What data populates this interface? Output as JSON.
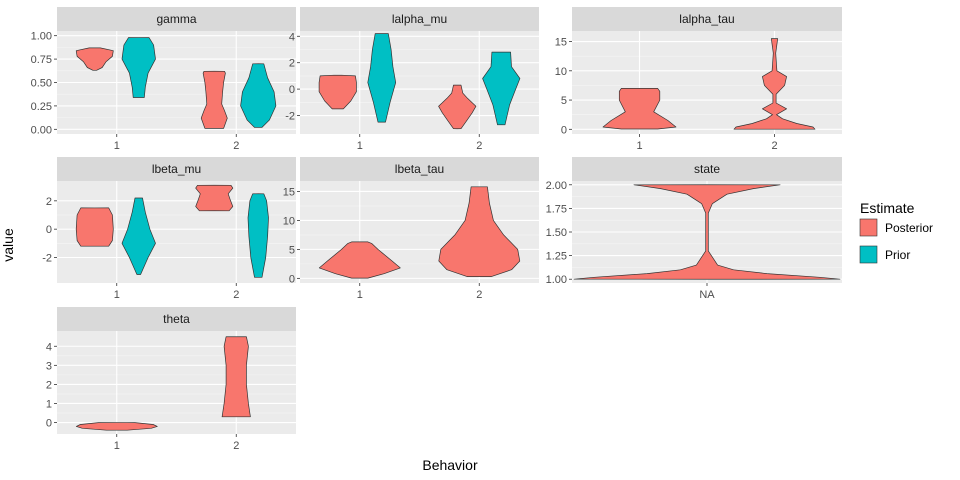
{
  "chart_data": {
    "type": "violin",
    "xlabel": "Behavior",
    "ylabel": "value",
    "legend": {
      "title": "Estimate",
      "placement": "right",
      "entries": [
        {
          "name": "Posterior",
          "color": "#F8766D"
        },
        {
          "name": "Prior",
          "color": "#00BFC4"
        }
      ]
    },
    "panels": [
      {
        "title": "gamma",
        "categories": [
          "1",
          "2"
        ],
        "ylim": [
          -0.05,
          1.05
        ],
        "yticks": [
          0.0,
          0.25,
          0.5,
          0.75,
          1.0
        ],
        "ytick_labels": [
          "0.00",
          "0.25",
          "0.50",
          "0.75",
          "1.00"
        ],
        "violins": [
          {
            "category": "1",
            "series": "Posterior",
            "profile": [
              [
                0.63,
                0.1
              ],
              [
                0.66,
                0.4
              ],
              [
                0.72,
                0.6
              ],
              [
                0.78,
                0.95
              ],
              [
                0.84,
                1.0
              ],
              [
                0.87,
                0.3
              ]
            ]
          },
          {
            "category": "1",
            "series": "Prior",
            "profile": [
              [
                0.34,
                0.3
              ],
              [
                0.45,
                0.35
              ],
              [
                0.6,
                0.5
              ],
              [
                0.75,
                0.9
              ],
              [
                0.9,
                0.8
              ],
              [
                0.98,
                0.55
              ]
            ]
          },
          {
            "category": "2",
            "series": "Posterior",
            "profile": [
              [
                0.01,
                0.5
              ],
              [
                0.12,
                0.7
              ],
              [
                0.2,
                0.55
              ],
              [
                0.27,
                0.4
              ],
              [
                0.4,
                0.45
              ],
              [
                0.5,
                0.5
              ],
              [
                0.6,
                0.6
              ],
              [
                0.62,
                0.55
              ]
            ]
          },
          {
            "category": "2",
            "series": "Prior",
            "profile": [
              [
                0.02,
                0.2
              ],
              [
                0.1,
                0.6
              ],
              [
                0.25,
                0.95
              ],
              [
                0.4,
                0.85
              ],
              [
                0.55,
                0.5
              ],
              [
                0.7,
                0.3
              ]
            ]
          }
        ]
      },
      {
        "title": "lalpha_mu",
        "categories": [
          "1",
          "2"
        ],
        "ylim": [
          -3.4,
          4.4
        ],
        "yticks": [
          -2,
          0,
          2,
          4
        ],
        "ytick_labels": [
          "-2",
          "0",
          "2",
          "4"
        ],
        "violins": [
          {
            "category": "1",
            "series": "Posterior",
            "profile": [
              [
                -1.5,
                0.3
              ],
              [
                -0.9,
                0.7
              ],
              [
                -0.2,
                1.0
              ],
              [
                0.5,
                1.0
              ],
              [
                1.0,
                0.95
              ],
              [
                1.05,
                0.2
              ]
            ]
          },
          {
            "category": "1",
            "series": "Prior",
            "profile": [
              [
                -2.5,
                0.2
              ],
              [
                -1.0,
                0.45
              ],
              [
                0.5,
                0.75
              ],
              [
                1.7,
                0.6
              ],
              [
                3.0,
                0.5
              ],
              [
                4.2,
                0.35
              ]
            ]
          },
          {
            "category": "2",
            "series": "Posterior",
            "profile": [
              [
                -3.0,
                0.2
              ],
              [
                -2.4,
                0.5
              ],
              [
                -1.8,
                0.8
              ],
              [
                -1.3,
                1.0
              ],
              [
                -0.7,
                0.55
              ],
              [
                -0.3,
                0.3
              ],
              [
                0.3,
                0.2
              ]
            ]
          },
          {
            "category": "2",
            "series": "Prior",
            "profile": [
              [
                -2.7,
                0.2
              ],
              [
                -1.2,
                0.45
              ],
              [
                -0.1,
                0.75
              ],
              [
                0.8,
                1.0
              ],
              [
                1.7,
                0.55
              ],
              [
                2.8,
                0.5
              ]
            ]
          }
        ]
      },
      {
        "title": "lalpha_tau",
        "categories": [
          "1",
          "2"
        ],
        "ylim": [
          -0.8,
          16.8
        ],
        "yticks": [
          0,
          5,
          10,
          15
        ],
        "ytick_labels": [
          "0",
          "5",
          "10",
          "15"
        ],
        "violins": [
          {
            "category": "1",
            "series": "Posterior",
            "profile": [
              [
                0.05,
                0.45
              ],
              [
                0.4,
                0.9
              ],
              [
                1.5,
                0.7
              ],
              [
                3.0,
                0.35
              ],
              [
                5.0,
                0.5
              ],
              [
                6.5,
                0.5
              ],
              [
                7.0,
                0.45
              ]
            ]
          },
          {
            "category": "2",
            "series": "Posterior",
            "profile": [
              [
                0.02,
                1.0
              ],
              [
                0.4,
                0.95
              ],
              [
                1.0,
                0.55
              ],
              [
                1.8,
                0.2
              ],
              [
                2.5,
                0.05
              ],
              [
                3.5,
                0.3
              ],
              [
                4.5,
                0.04
              ],
              [
                6.0,
                0.04
              ],
              [
                7.5,
                0.25
              ],
              [
                9.0,
                0.3
              ],
              [
                10.0,
                0.06
              ],
              [
                13.0,
                0.03
              ],
              [
                15.5,
                0.08
              ]
            ]
          }
        ]
      },
      {
        "title": "lbeta_mu",
        "categories": [
          "1",
          "2"
        ],
        "ylim": [
          -3.8,
          3.4
        ],
        "yticks": [
          -2,
          0,
          2
        ],
        "ytick_labels": [
          "-2",
          "0",
          "2"
        ],
        "violins": [
          {
            "category": "1",
            "series": "Posterior",
            "profile": [
              [
                -1.2,
                0.75
              ],
              [
                -0.8,
                0.95
              ],
              [
                0.0,
                1.0
              ],
              [
                1.0,
                0.95
              ],
              [
                1.5,
                0.75
              ]
            ]
          },
          {
            "category": "1",
            "series": "Prior",
            "profile": [
              [
                -3.2,
                0.1
              ],
              [
                -2.0,
                0.5
              ],
              [
                -1.0,
                0.9
              ],
              [
                0.0,
                0.6
              ],
              [
                1.2,
                0.35
              ],
              [
                2.2,
                0.2
              ]
            ]
          },
          {
            "category": "2",
            "series": "Posterior",
            "profile": [
              [
                1.3,
                0.8
              ],
              [
                1.6,
                1.0
              ],
              [
                2.1,
                0.85
              ],
              [
                2.5,
                0.75
              ],
              [
                2.9,
                1.0
              ],
              [
                3.1,
                0.9
              ]
            ]
          },
          {
            "category": "2",
            "series": "Prior",
            "profile": [
              [
                -3.4,
                0.2
              ],
              [
                -2.0,
                0.4
              ],
              [
                -0.5,
                0.5
              ],
              [
                0.8,
                0.55
              ],
              [
                2.0,
                0.45
              ],
              [
                2.5,
                0.3
              ]
            ]
          }
        ]
      },
      {
        "title": "lbeta_tau",
        "categories": [
          "1",
          "2"
        ],
        "ylim": [
          -0.8,
          16.8
        ],
        "yticks": [
          0,
          5,
          10,
          15
        ],
        "ytick_labels": [
          "0",
          "5",
          "10",
          "15"
        ],
        "violins": [
          {
            "category": "1",
            "series": "Posterior",
            "profile": [
              [
                0.05,
                0.2
              ],
              [
                0.8,
                0.6
              ],
              [
                1.8,
                1.0
              ],
              [
                3.0,
                0.8
              ],
              [
                5.0,
                0.45
              ],
              [
                6.0,
                0.3
              ],
              [
                6.3,
                0.2
              ]
            ]
          },
          {
            "category": "2",
            "series": "Posterior",
            "profile": [
              [
                0.3,
                0.3
              ],
              [
                1.5,
                0.8
              ],
              [
                3.0,
                1.0
              ],
              [
                5.0,
                0.95
              ],
              [
                7.5,
                0.6
              ],
              [
                10.0,
                0.35
              ],
              [
                13.0,
                0.25
              ],
              [
                15.8,
                0.2
              ]
            ]
          }
        ]
      },
      {
        "title": "state",
        "categories": [
          "NA"
        ],
        "ylim": [
          0.96,
          2.04
        ],
        "yticks": [
          1.0,
          1.25,
          1.5,
          1.75,
          2.0
        ],
        "ytick_labels": [
          "1.00",
          "1.25",
          "1.50",
          "1.75",
          "2.00"
        ],
        "violins": [
          {
            "category": "NA",
            "series": "Posterior",
            "profile": [
              [
                1.0,
                1.0
              ],
              [
                1.02,
                0.85
              ],
              [
                1.06,
                0.45
              ],
              [
                1.1,
                0.2
              ],
              [
                1.15,
                0.08
              ],
              [
                1.3,
                0.01
              ],
              [
                1.7,
                0.01
              ],
              [
                1.8,
                0.04
              ],
              [
                1.9,
                0.15
              ],
              [
                1.96,
                0.35
              ],
              [
                2.0,
                0.55
              ]
            ]
          }
        ]
      },
      {
        "title": "theta",
        "categories": [
          "1",
          "2"
        ],
        "ylim": [
          -0.6,
          4.8
        ],
        "yticks": [
          0,
          1,
          2,
          3,
          4
        ],
        "ytick_labels": [
          "0",
          "1",
          "2",
          "3",
          "4"
        ],
        "violins": [
          {
            "category": "1",
            "series": "Posterior",
            "profile": [
              [
                -0.4,
                0.25
              ],
              [
                -0.3,
                0.85
              ],
              [
                -0.2,
                1.0
              ],
              [
                -0.1,
                0.9
              ],
              [
                0.0,
                0.45
              ]
            ]
          },
          {
            "category": "2",
            "series": "Posterior",
            "profile": [
              [
                0.3,
                0.35
              ],
              [
                1.0,
                0.3
              ],
              [
                2.0,
                0.25
              ],
              [
                3.0,
                0.25
              ],
              [
                4.0,
                0.3
              ],
              [
                4.5,
                0.25
              ]
            ]
          }
        ]
      }
    ]
  }
}
